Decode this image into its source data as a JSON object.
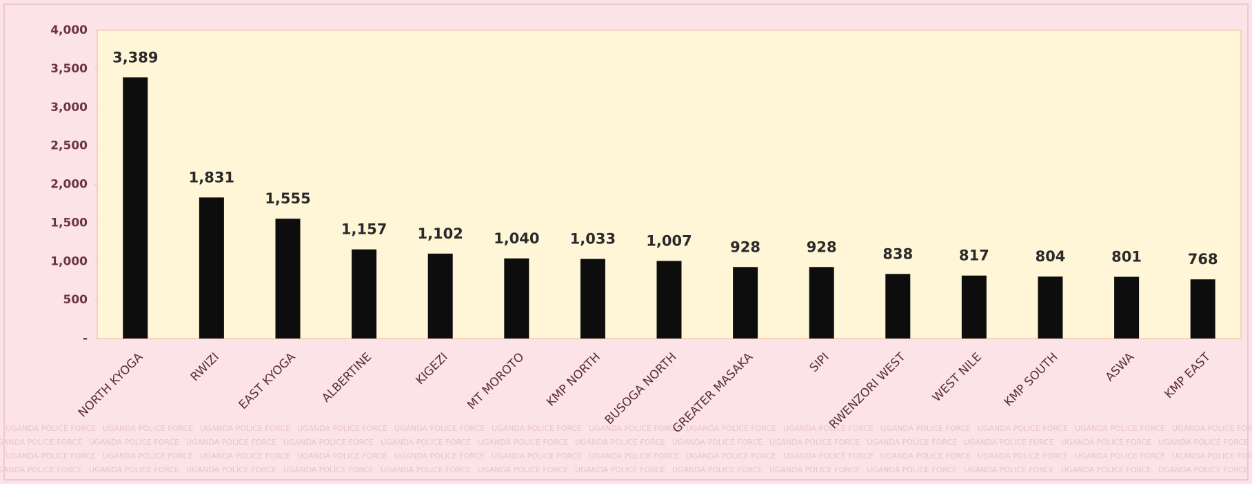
{
  "chart_data": {
    "type": "bar",
    "categories": [
      "NORTH KYOGA",
      "RWIZI",
      "EAST KYOGA",
      "ALBERTINE",
      "KIGEZI",
      "MT MOROTO",
      "KMP NORTH",
      "BUSOGA NORTH",
      "GREATER MASAKA",
      "SIPI",
      "RWENZORI WEST",
      "WEST NILE",
      "KMP SOUTH",
      "ASWA",
      "KMP EAST"
    ],
    "values": [
      3389,
      1831,
      1555,
      1157,
      1102,
      1040,
      1033,
      1007,
      928,
      928,
      838,
      817,
      804,
      801,
      768
    ],
    "value_labels": [
      "3,389",
      "1,831",
      "1,555",
      "1,157",
      "1,102",
      "1,040",
      "1,033",
      "1,007",
      "928",
      "928",
      "838",
      "817",
      "804",
      "801",
      "768"
    ],
    "color": "#0d0d0d",
    "ylim": [
      0,
      4000
    ],
    "yticks": [
      {
        "value": 0,
        "label": "-"
      },
      500,
      {
        "value": 1000,
        "label": "1,000"
      },
      {
        "value": 1500,
        "label": "1,500"
      },
      {
        "value": 2000,
        "label": "2,000"
      },
      {
        "value": 2500,
        "label": "2,500"
      },
      {
        "value": 3000,
        "label": "3,000"
      },
      {
        "value": 3500,
        "label": "3,500"
      },
      {
        "value": 4000,
        "label": "4,000"
      }
    ],
    "grid": false,
    "watermark": "UGANDA POLICE FORCE"
  }
}
